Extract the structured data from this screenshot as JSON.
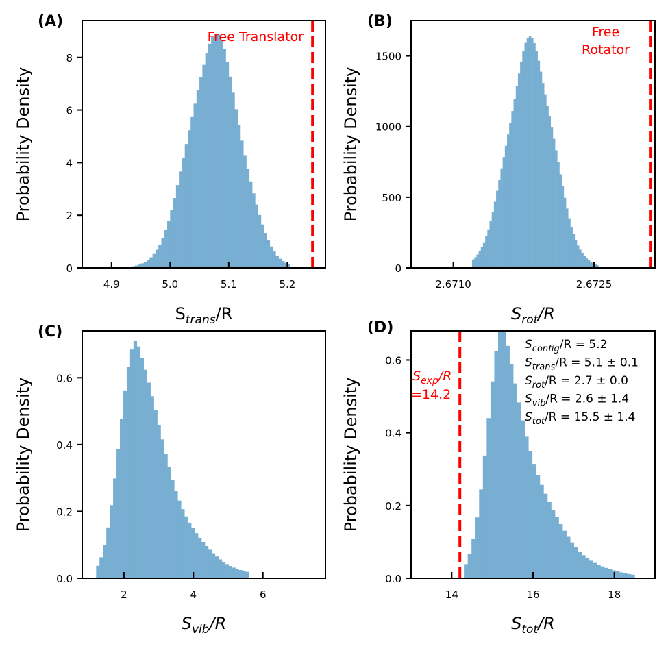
{
  "figure": {
    "background": "#ffffff",
    "bar_color": "#77aed1",
    "ref_line_color": "#ff0000"
  },
  "chart_data": [
    {
      "id": "A",
      "type": "bar",
      "panel_label": "(A)",
      "ylabel": "Probability Density",
      "xlabel": {
        "base": "S",
        "sub": "trans",
        "tail": "/R",
        "italic": false
      },
      "xlim": [
        4.85,
        5.265
      ],
      "ylim": [
        0,
        9.4
      ],
      "xticks": [
        4.9,
        5.0,
        5.1,
        5.2
      ],
      "xtick_labels": [
        "4.9",
        "5.0",
        "5.1",
        "5.2"
      ],
      "yticks": [
        0,
        2,
        4,
        6,
        8
      ],
      "ytick_labels": [
        "0",
        "2",
        "4",
        "6",
        "8"
      ],
      "reference_line": {
        "x": 5.243
      },
      "annotation_lines": [
        "Free Translator"
      ],
      "histogram": {
        "mean": 5.085,
        "sd": 0.045,
        "skew": -0.25,
        "start": 4.915,
        "end": 5.205,
        "bins": 58,
        "peak": 8.9
      }
    },
    {
      "id": "B",
      "type": "bar",
      "panel_label": "(B)",
      "ylabel": "Probability Density",
      "xlabel": {
        "base": "S",
        "sub": "rot",
        "tail": "/R",
        "italic": true
      },
      "xlim": [
        2.67055,
        2.67315
      ],
      "ylim": [
        0,
        1750
      ],
      "xticks": [
        2.671,
        2.6725
      ],
      "xtick_labels": [
        "2.6710",
        "2.6725"
      ],
      "yticks": [
        0,
        500,
        1000,
        1500
      ],
      "ytick_labels": [
        "0",
        "500",
        "1000",
        "1500"
      ],
      "reference_line": {
        "x": 2.6731
      },
      "annotation_lines": [
        "Free",
        "Rotator"
      ],
      "histogram": {
        "mean": 2.67185,
        "sd": 0.00024,
        "skew": -0.15,
        "start": 2.6712,
        "end": 2.67255,
        "bins": 58,
        "peak": 1640
      }
    },
    {
      "id": "C",
      "type": "bar",
      "panel_label": "(C)",
      "ylabel": "Probability Density",
      "xlabel": {
        "base": "S",
        "sub": "vib",
        "tail": "/R",
        "italic": true
      },
      "xlim": [
        0.8,
        7.8
      ],
      "ylim": [
        0,
        0.74
      ],
      "xticks": [
        2,
        4,
        6
      ],
      "xtick_labels": [
        "2",
        "4",
        "6"
      ],
      "yticks": [
        0,
        0.2,
        0.4,
        0.6
      ],
      "ytick_labels": [
        "0.0",
        "0.2",
        "0.4",
        "0.6"
      ],
      "histogram": {
        "mode": 2.35,
        "sd_left": 0.45,
        "sd_right": 0.95,
        "tail_power": 1.25,
        "start": 1.2,
        "end": 5.6,
        "bins": 45,
        "peak": 0.71
      }
    },
    {
      "id": "D",
      "type": "bar",
      "panel_label": "(D)",
      "ylabel": "Probability Density",
      "xlabel": {
        "base": "S",
        "sub": "tot",
        "tail": "/R",
        "italic": true
      },
      "xlim": [
        13.0,
        19.0
      ],
      "ylim": [
        0,
        0.68
      ],
      "xticks": [
        14,
        16,
        18
      ],
      "xtick_labels": [
        "14",
        "16",
        "18"
      ],
      "yticks": [
        0,
        0.2,
        0.4,
        0.6
      ],
      "ytick_labels": [
        "0.0",
        "0.2",
        "0.4",
        "0.6"
      ],
      "reference_line": {
        "x": 14.2
      },
      "annotation_lines": [
        {
          "base": "S",
          "sub": "exp",
          "tail": "/R"
        },
        {
          "text": "=14.2"
        }
      ],
      "stats_lines": [
        {
          "base": "S",
          "sub": "config",
          "tail": "/R = 5.2"
        },
        {
          "base": "S",
          "sub": "trans",
          "tail": "/R = 5.1 ± 0.1"
        },
        {
          "base": "S",
          "sub": "rot",
          "tail": "/R = 2.7 ± 0.0"
        },
        {
          "base": "S",
          "sub": "vib",
          "tail": "/R = 2.6 ± 1.4"
        },
        {
          "base": "S",
          "sub": "tot",
          "tail": "/R = 15.5 ± 1.4"
        }
      ],
      "histogram": {
        "mode": 15.25,
        "sd_left": 0.38,
        "sd_right": 0.85,
        "tail_power": 1.25,
        "start": 14.3,
        "end": 18.5,
        "bins": 45,
        "peak": 0.68
      }
    }
  ]
}
